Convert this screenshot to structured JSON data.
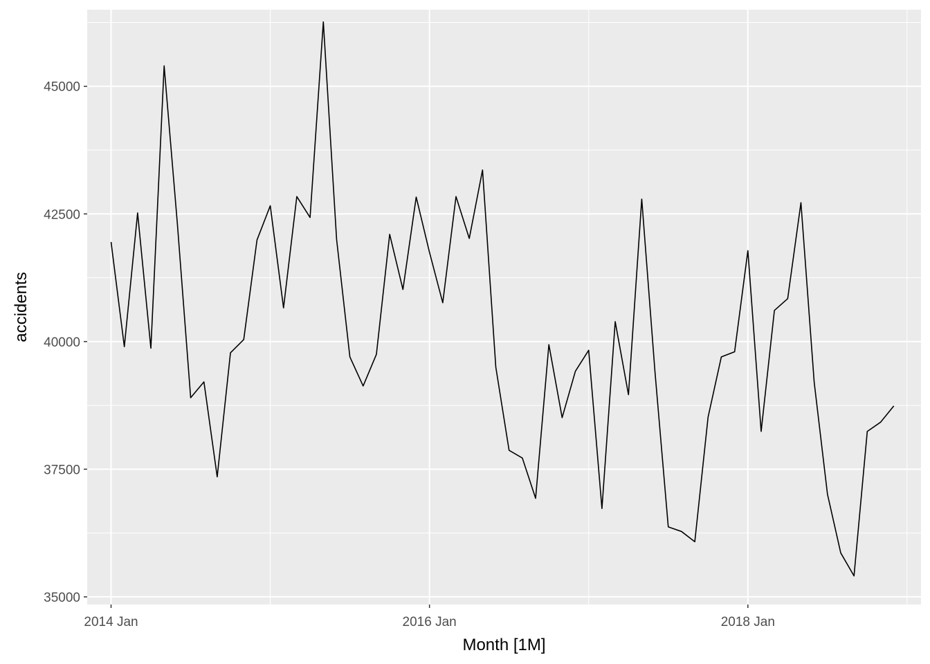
{
  "chart_data": {
    "type": "line",
    "title": "",
    "xlabel": "Month [1M]",
    "ylabel": "accidents",
    "x_ticks": [
      "2014 Jan",
      "2016 Jan",
      "2018 Jan"
    ],
    "y_ticks": [
      35000,
      37500,
      40000,
      42500,
      45000
    ],
    "ylim": [
      34850,
      46500
    ],
    "xlim": [
      "2013 Nov",
      "2019 Feb"
    ],
    "grid": true,
    "colors": {
      "panel": "#ebebeb",
      "grid": "#ffffff",
      "line": "#000000"
    },
    "series": [
      {
        "x": [
          "2014 Jan",
          "2014 Feb",
          "2014 Mar",
          "2014 Apr",
          "2014 May",
          "2014 Jun",
          "2014 Jul",
          "2014 Aug",
          "2014 Sep",
          "2014 Oct",
          "2014 Nov",
          "2014 Dec",
          "2015 Jan",
          "2015 Feb",
          "2015 Mar",
          "2015 Apr",
          "2015 May",
          "2015 Jun",
          "2015 Jul",
          "2015 Aug",
          "2015 Sep",
          "2015 Oct",
          "2015 Nov",
          "2015 Dec",
          "2016 Jan",
          "2016 Feb",
          "2016 Mar",
          "2016 Apr",
          "2016 May",
          "2016 Jun",
          "2016 Jul",
          "2016 Aug",
          "2016 Sep",
          "2016 Oct",
          "2016 Nov",
          "2016 Dec",
          "2017 Jan",
          "2017 Feb",
          "2017 Mar",
          "2017 Apr",
          "2017 May",
          "2017 Jun",
          "2017 Jul",
          "2017 Aug",
          "2017 Sep",
          "2017 Oct",
          "2017 Nov",
          "2017 Dec",
          "2018 Jan",
          "2018 Feb",
          "2018 Mar",
          "2018 Apr",
          "2018 May",
          "2018 Jun",
          "2018 Jul",
          "2018 Aug",
          "2018 Sep",
          "2018 Oct",
          "2018 Nov",
          "2018 Dec"
        ],
        "values": [
          41950,
          39900,
          42520,
          39870,
          45400,
          42300,
          38900,
          39210,
          37350,
          39780,
          40040,
          41990,
          42660,
          40660,
          42840,
          42430,
          46260,
          42000,
          39700,
          39130,
          39750,
          42100,
          41020,
          42830,
          41750,
          40760,
          42840,
          42020,
          43360,
          39500,
          37870,
          37720,
          36930,
          39940,
          38510,
          39420,
          39830,
          36730,
          40390,
          38960,
          42790,
          39400,
          36370,
          36280,
          36080,
          38520,
          39700,
          39800,
          41780,
          38240,
          40610,
          40840,
          42720,
          39200,
          37010,
          35860,
          35410,
          38240,
          38420,
          38740
        ]
      }
    ]
  }
}
